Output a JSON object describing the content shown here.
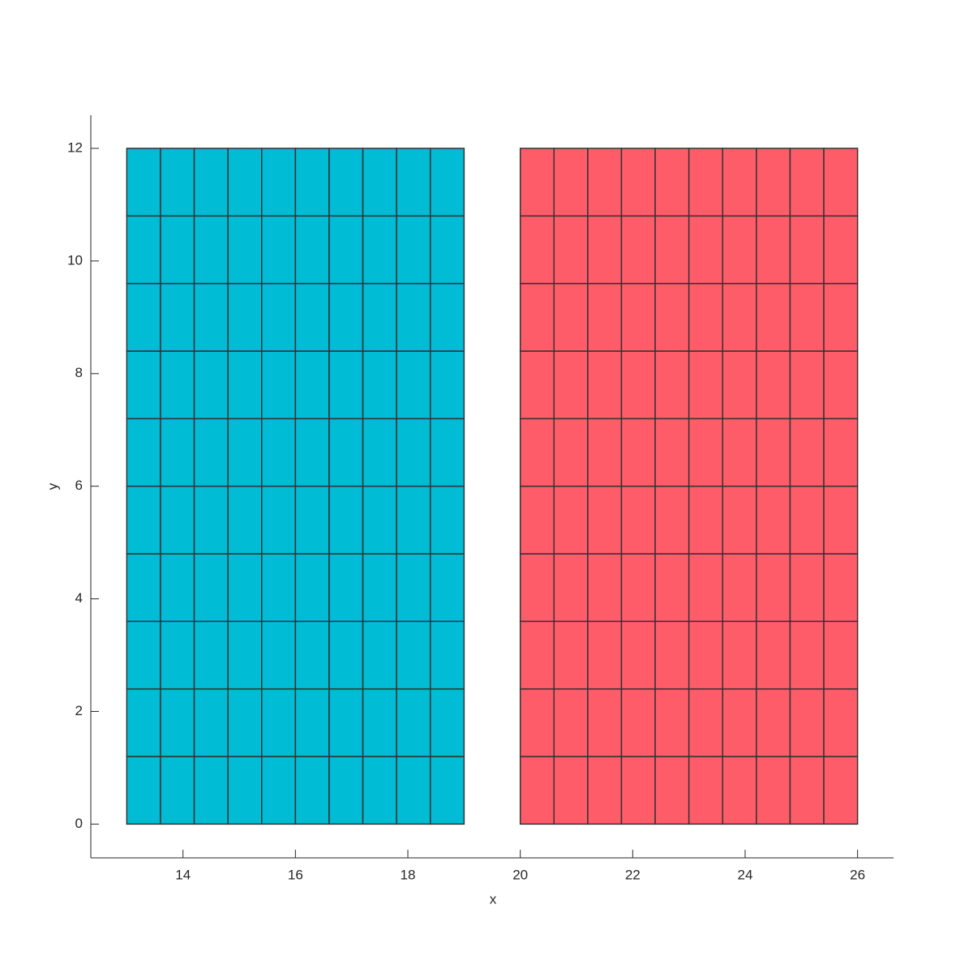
{
  "chart_data": {
    "type": "mesh",
    "x_label": "x",
    "y_label": "y",
    "grids": [
      {
        "color": "#00bcd4",
        "x_edges": [
          13,
          13.6,
          14.2,
          14.8,
          15.4,
          16,
          16.6,
          17.2,
          17.8,
          18.4,
          19
        ],
        "y_edges": [
          0,
          1.2,
          2.4,
          3.6,
          4.8,
          6,
          7.2,
          8.4,
          9.6,
          10.8,
          12
        ]
      },
      {
        "color": "#ff5c69",
        "x_edges": [
          20,
          20.6,
          21.2,
          21.8,
          22.4,
          23,
          23.6,
          24.2,
          24.8,
          25.4,
          26
        ],
        "y_edges": [
          0,
          1.2,
          2.4,
          3.6,
          4.8,
          6,
          7.2,
          8.4,
          9.6,
          10.8,
          12
        ]
      }
    ],
    "xlim": [
      12.36,
      26.64
    ],
    "ylim": [
      -0.6,
      12.59
    ],
    "xticks": [
      14,
      16,
      18,
      20,
      22,
      24,
      26
    ],
    "yticks": [
      0,
      2,
      4,
      6,
      8,
      10,
      12
    ]
  }
}
